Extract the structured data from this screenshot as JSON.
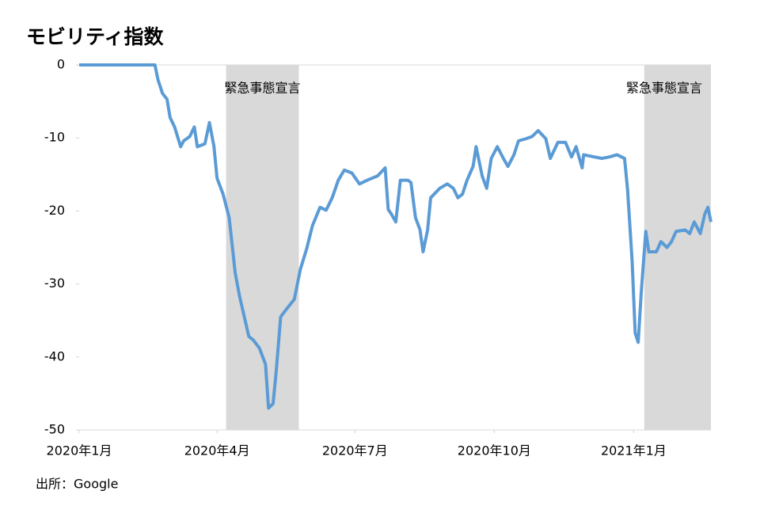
{
  "chart_data": {
    "type": "line",
    "title": "モビリティ指数",
    "source": "出所：Google",
    "x": [
      0,
      10,
      20,
      30,
      40,
      50,
      52,
      55,
      58,
      60,
      63,
      67,
      69,
      73,
      76,
      78,
      83,
      86,
      89,
      91,
      95,
      99,
      103,
      106,
      109,
      112,
      115,
      119,
      123,
      125,
      128,
      130,
      133,
      137,
      142,
      146,
      150,
      154,
      159,
      163,
      167,
      171,
      175,
      180,
      185,
      190,
      197,
      202,
      204,
      206,
      209,
      212,
      217,
      219,
      222,
      225,
      227,
      230,
      232,
      238,
      243,
      247,
      250,
      253,
      256,
      260,
      262,
      266,
      269,
      272,
      276,
      280,
      283,
      287,
      290,
      295,
      299,
      303,
      308,
      311,
      316,
      321,
      325,
      328,
      332,
      333,
      340,
      345,
      350,
      355,
      360,
      362,
      365,
      367,
      369,
      371,
      374,
      376,
      381,
      384,
      388,
      391,
      394,
      400,
      403,
      406,
      410,
      413,
      415,
      417
    ],
    "series": [
      {
        "name": "モビリティ指数",
        "color": "#5b9bd5",
        "values": [
          0,
          0,
          0,
          0,
          0,
          0,
          -2,
          -3.9,
          -4.7,
          -7.2,
          -8.5,
          -11.2,
          -10.4,
          -9.8,
          -8.5,
          -11.2,
          -10.8,
          -7.9,
          -11.2,
          -15.5,
          -17.7,
          -20.9,
          -28.5,
          -31.8,
          -34.5,
          -37.2,
          -37.7,
          -38.8,
          -41,
          -47,
          -46.4,
          -42.1,
          -34.5,
          -33.4,
          -32.1,
          -28,
          -25.3,
          -22,
          -19.5,
          -19.9,
          -18.2,
          -15.8,
          -14.4,
          -14.8,
          -16.3,
          -15.8,
          -15.2,
          -14.1,
          -19.8,
          -20.4,
          -21.5,
          -15.8,
          -15.8,
          -16.1,
          -20.9,
          -22.6,
          -25.6,
          -22.6,
          -18.2,
          -16.9,
          -16.3,
          -16.9,
          -18.2,
          -17.7,
          -15.8,
          -13.9,
          -11.2,
          -15.2,
          -16.9,
          -12.8,
          -11.2,
          -12.8,
          -13.9,
          -12.3,
          -10.4,
          -10.1,
          -9.8,
          -9,
          -10.1,
          -12.8,
          -10.6,
          -10.6,
          -12.6,
          -11.2,
          -14.1,
          -12.3,
          -12.6,
          -12.8,
          -12.6,
          -12.3,
          -12.8,
          -17.1,
          -26.9,
          -36.7,
          -38,
          -31.2,
          -22.8,
          -25.6,
          -25.6,
          -24.2,
          -25,
          -24.2,
          -22.8,
          -22.6,
          -23.1,
          -21.5,
          -23.1,
          -20.4,
          -19.5,
          -21.5
        ]
      }
    ],
    "xlim": [
      0,
      417
    ],
    "xticks": [
      {
        "value": 0,
        "label": "2020年1月"
      },
      {
        "value": 91,
        "label": "2020年4月"
      },
      {
        "value": 182,
        "label": "2020年7月"
      },
      {
        "value": 274,
        "label": "2020年10月"
      },
      {
        "value": 366,
        "label": "2021年1月"
      }
    ],
    "ylim": [
      -50,
      0
    ],
    "yticks": [
      0,
      -10,
      -20,
      -30,
      -40,
      -50
    ],
    "shaded_regions": [
      {
        "start": 97,
        "end": 145,
        "label": "緊急事態宣言",
        "color": "#d9d9d9"
      },
      {
        "start": 373,
        "end": 417,
        "label": "緊急事態宣言",
        "color": "#d9d9d9"
      }
    ]
  }
}
